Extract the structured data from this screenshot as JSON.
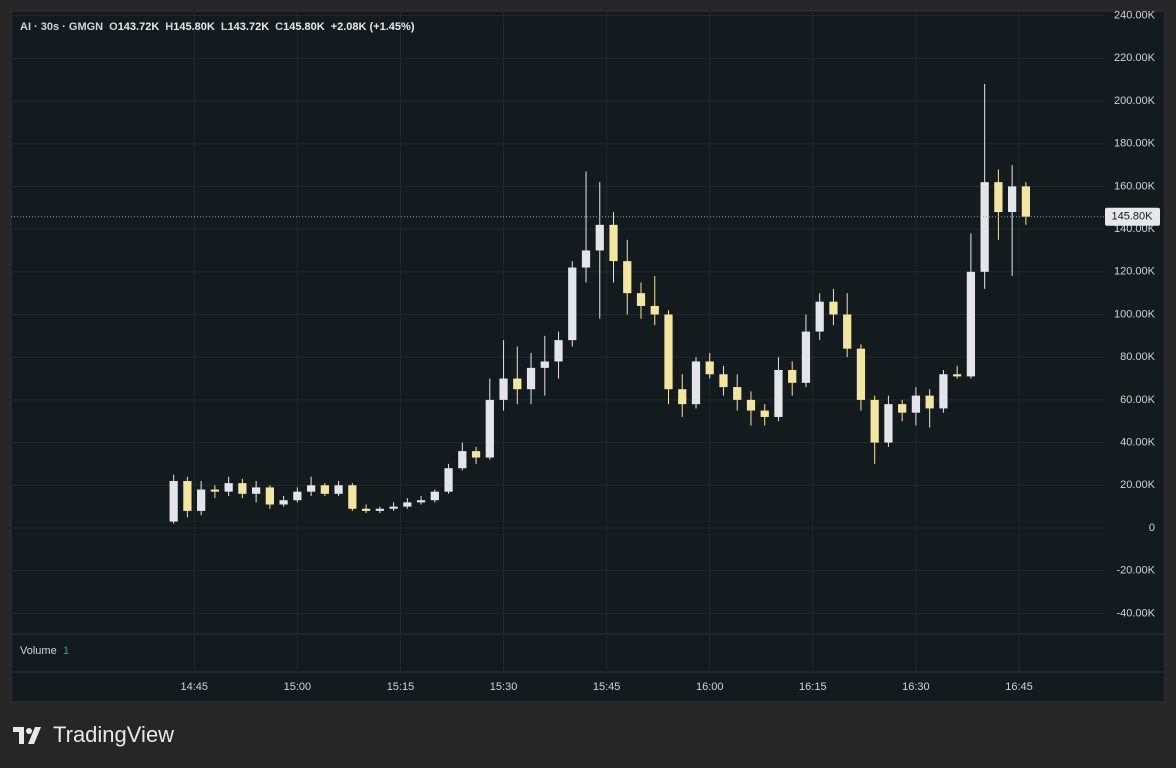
{
  "chart_data": {
    "type": "candlestick",
    "legend": {
      "symbol": "AI · 30s · GMGN",
      "items": [
        {
          "key": "O",
          "value": "143.72K"
        },
        {
          "key": "H",
          "value": "145.80K"
        },
        {
          "key": "L",
          "value": "143.72K"
        },
        {
          "key": "C",
          "value": "145.80K"
        }
      ],
      "change": "+2.08K (+1.45%)"
    },
    "volume_label": "Volume",
    "volume_length": "1",
    "up_color": "#e3e5ea",
    "down_color": "#f3e5a2",
    "grid": true,
    "x": [
      "14:42:00",
      "14:44:00",
      "14:46:00",
      "14:48:00",
      "14:50:00",
      "14:52:00",
      "14:54:00",
      "14:56:00",
      "14:58:00",
      "15:00:00",
      "15:02:00",
      "15:04:00",
      "15:06:00",
      "15:08:00",
      "15:10:00",
      "15:12:00",
      "15:14:00",
      "15:16:00",
      "15:18:00",
      "15:20:00",
      "15:22:00",
      "15:24:00",
      "15:26:00",
      "15:28:00",
      "15:30:00",
      "15:32:00",
      "15:34:00",
      "15:36:00",
      "15:38:00",
      "15:40:00",
      "15:42:00",
      "15:44:00",
      "15:46:00",
      "15:48:00",
      "15:50:00",
      "15:52:00",
      "15:54:00",
      "15:56:00",
      "15:58:00",
      "16:00:00",
      "16:02:00",
      "16:04:00",
      "16:06:00",
      "16:08:00",
      "16:10:00",
      "16:12:00",
      "16:14:00",
      "16:16:00",
      "16:18:00",
      "16:20:00",
      "16:22:00",
      "16:24:00",
      "16:26:00",
      "16:28:00",
      "16:30:00",
      "16:32:00",
      "16:34:00",
      "16:36:00",
      "16:38:00",
      "16:40:00",
      "16:42:00",
      "16:44:00",
      "16:46:00"
    ],
    "open": [
      3000,
      22000,
      8000,
      18000,
      17000,
      21000,
      16000,
      19000,
      11000,
      13000,
      17000,
      20000,
      16000,
      20000,
      9000,
      8000,
      9000,
      10000,
      12000,
      13000,
      17000,
      28000,
      36000,
      33000,
      60000,
      70000,
      65000,
      75000,
      78000,
      88000,
      122000,
      130000,
      142000,
      125000,
      110000,
      104000,
      100000,
      65000,
      58000,
      78000,
      72000,
      66000,
      60000,
      55000,
      52000,
      74000,
      68000,
      92000,
      106000,
      100000,
      84000,
      60000,
      40000,
      58000,
      54000,
      62000,
      56000,
      72000,
      71000,
      120000,
      162000,
      148000,
      160000
    ],
    "high": [
      25000,
      24000,
      22000,
      20000,
      24000,
      23000,
      22000,
      20000,
      15000,
      19000,
      24000,
      21000,
      22000,
      21000,
      11000,
      10000,
      12000,
      14000,
      15000,
      18000,
      30000,
      40000,
      38000,
      70000,
      88000,
      85000,
      82000,
      90000,
      92000,
      125000,
      167000,
      162000,
      148000,
      135000,
      115000,
      118000,
      102000,
      72000,
      80000,
      82000,
      76000,
      72000,
      64000,
      58000,
      80000,
      78000,
      100000,
      110000,
      112000,
      110000,
      86000,
      62000,
      62000,
      60000,
      66000,
      65000,
      74000,
      76000,
      138000,
      208000,
      168000,
      170000,
      162000
    ],
    "low": [
      2000,
      5000,
      6000,
      14000,
      15000,
      14000,
      12000,
      9000,
      10000,
      12000,
      15000,
      15000,
      15000,
      8000,
      7000,
      7000,
      8000,
      9000,
      11000,
      12000,
      16000,
      27000,
      30000,
      32000,
      55000,
      58000,
      58000,
      62000,
      70000,
      85000,
      115000,
      98000,
      115000,
      100000,
      98000,
      95000,
      58000,
      52000,
      56000,
      70000,
      62000,
      55000,
      48000,
      48000,
      50000,
      62000,
      66000,
      88000,
      95000,
      80000,
      55000,
      30000,
      38000,
      50000,
      48000,
      47000,
      54000,
      70000,
      70000,
      112000,
      135000,
      118000,
      142000
    ],
    "close": [
      22000,
      8000,
      18000,
      17000,
      21000,
      16000,
      19000,
      11000,
      13000,
      17000,
      20000,
      16000,
      20000,
      9000,
      8000,
      9000,
      10000,
      12000,
      13000,
      17000,
      28000,
      36000,
      33000,
      60000,
      70000,
      65000,
      75000,
      78000,
      88000,
      122000,
      130000,
      142000,
      125000,
      110000,
      104000,
      100000,
      65000,
      58000,
      78000,
      72000,
      66000,
      60000,
      55000,
      52000,
      74000,
      68000,
      92000,
      106000,
      100000,
      84000,
      60000,
      40000,
      58000,
      54000,
      62000,
      56000,
      72000,
      71000,
      120000,
      162000,
      148000,
      160000,
      145800
    ],
    "last_price": {
      "value": 145800,
      "label": "145.80K"
    },
    "xlim": [
      "14:18:20",
      "16:57:22"
    ],
    "xticks": [
      "14:45",
      "15:00",
      "15:15",
      "15:30",
      "15:45",
      "16:00",
      "16:15",
      "16:30",
      "16:45"
    ],
    "ylim": [
      -49200,
      241700
    ],
    "yticks": [
      {
        "value": -40000,
        "label": "-40.00K"
      },
      {
        "value": -20000,
        "label": "-20.00K"
      },
      0,
      {
        "value": 20000,
        "label": "20.00K"
      },
      {
        "value": 40000,
        "label": "40.00K"
      },
      {
        "value": 60000,
        "label": "60.00K"
      },
      {
        "value": 80000,
        "label": "80.00K"
      },
      {
        "value": 100000,
        "label": "100.00K"
      },
      {
        "value": 120000,
        "label": "120.00K"
      },
      {
        "value": 140000,
        "label": "140.00K"
      },
      {
        "value": 160000,
        "label": "160.00K"
      },
      {
        "value": 180000,
        "label": "180.00K"
      },
      {
        "value": 200000,
        "label": "200.00K"
      },
      {
        "value": 220000,
        "label": "220.00K"
      },
      {
        "value": 240000,
        "label": "240.00K"
      }
    ]
  },
  "brand": "TradingView"
}
